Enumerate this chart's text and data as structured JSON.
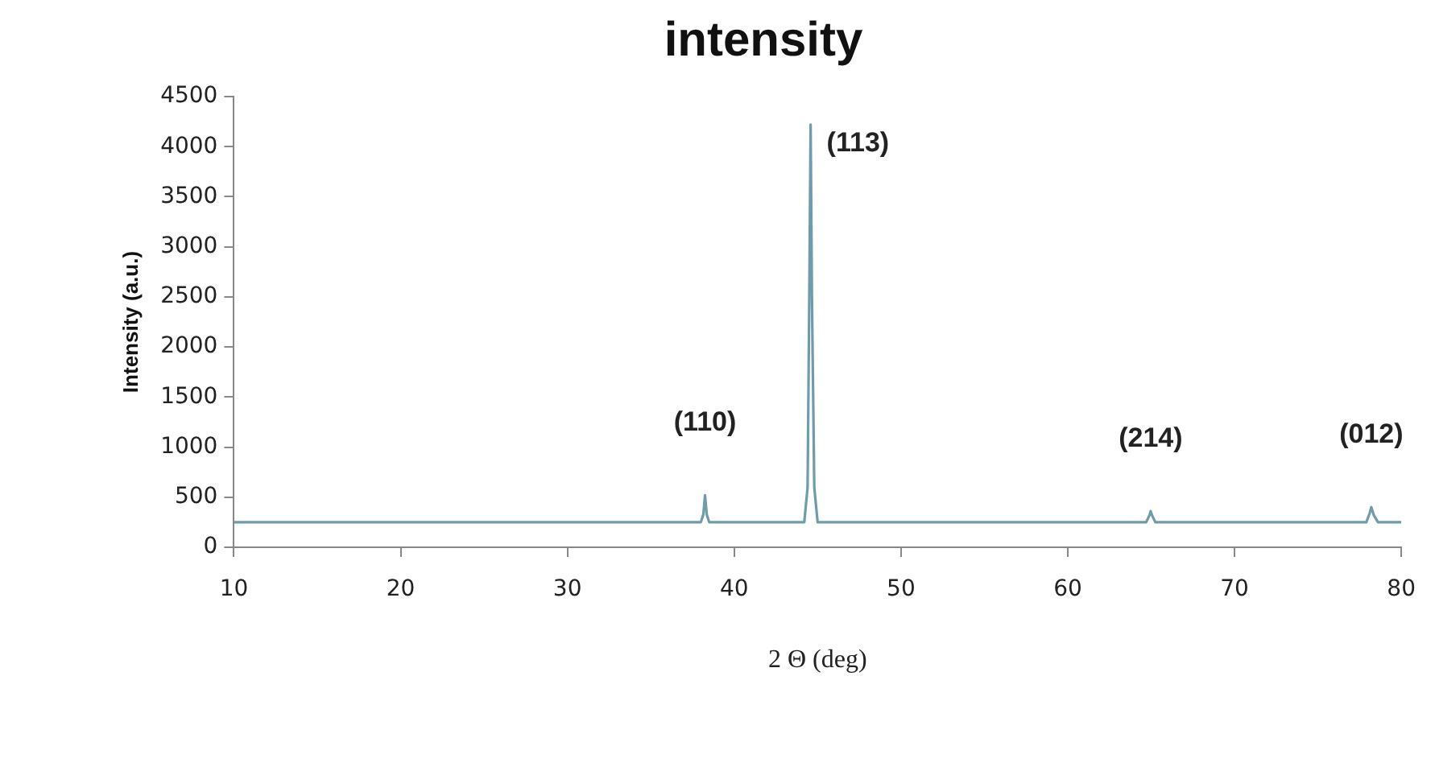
{
  "chart_data": {
    "type": "line",
    "title": "intensity",
    "xlabel": "2 Θ (deg)",
    "ylabel": "Intensity (a.u.)",
    "x": [
      10,
      38.0,
      38.15,
      38.25,
      38.35,
      38.5,
      44.2,
      44.4,
      44.5,
      44.58,
      44.66,
      44.8,
      45.0,
      64.7,
      64.9,
      64.97,
      65.05,
      65.25,
      77.9,
      78.1,
      78.2,
      78.35,
      78.6,
      80
    ],
    "series": [
      {
        "color": "#6f9bab",
        "values": [
          250,
          250,
          330,
          520,
          330,
          250,
          250,
          600,
          2500,
          4220,
          2500,
          600,
          250,
          250,
          320,
          360,
          320,
          250,
          250,
          340,
          400,
          320,
          250,
          250
        ]
      }
    ],
    "xlim": [
      10,
      80
    ],
    "xticks": [
      10,
      20,
      30,
      40,
      50,
      60,
      70,
      80
    ],
    "ylim": [
      0,
      4500
    ],
    "yticks": [
      0,
      500,
      1000,
      1500,
      2000,
      2500,
      3000,
      3500,
      4000,
      4500
    ],
    "grid": false,
    "legend": false,
    "marker": "none",
    "line_style": "solid",
    "annotations": [
      {
        "text": "(110)",
        "x": 38.25,
        "y": 520
      },
      {
        "text": "(113)",
        "x": 44.58,
        "y": 4220
      },
      {
        "text": "(214)",
        "x": 64.97,
        "y": 360
      },
      {
        "text": "(012)",
        "x": 78.2,
        "y": 400
      }
    ]
  }
}
